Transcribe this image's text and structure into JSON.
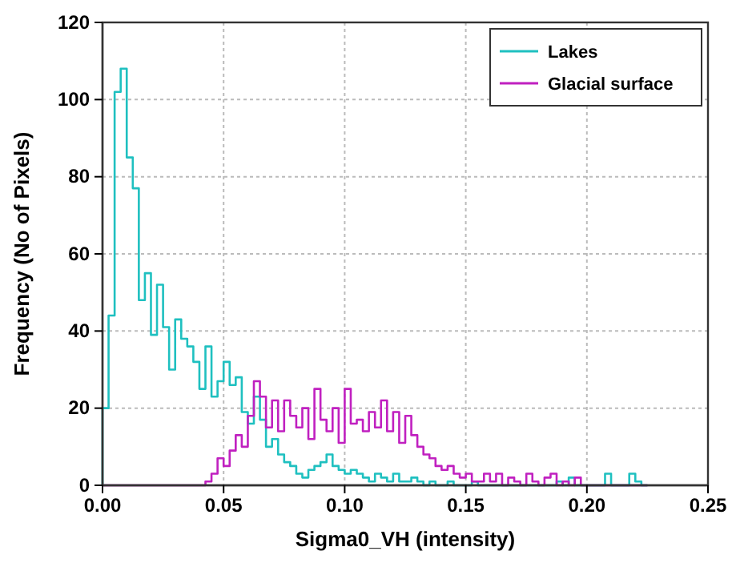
{
  "chart_data": {
    "type": "histogram",
    "xlabel": "Sigma0_VH (intensity)",
    "ylabel": "Frequency (No of Pixels)",
    "bins": [
      0,
      0.0025,
      0.005,
      0.0075,
      0.01,
      0.0125,
      0.015,
      0.0175,
      0.02,
      0.0225,
      0.025,
      0.0275,
      0.03,
      0.0325,
      0.035,
      0.0375,
      0.04,
      0.0425,
      0.045,
      0.0475,
      0.05,
      0.0525,
      0.055,
      0.0575,
      0.06,
      0.0625,
      0.065,
      0.0675,
      0.07,
      0.0725,
      0.075,
      0.0775,
      0.08,
      0.0825,
      0.085,
      0.0875,
      0.09,
      0.0925,
      0.095,
      0.0975,
      0.1,
      0.1025,
      0.105,
      0.1075,
      0.11,
      0.1125,
      0.115,
      0.1175,
      0.12,
      0.1225,
      0.125,
      0.1275,
      0.13,
      0.1325,
      0.135,
      0.1375,
      0.14,
      0.1425,
      0.145,
      0.1475,
      0.15,
      0.1525,
      0.155,
      0.1575,
      0.16,
      0.1625,
      0.165,
      0.1675,
      0.17,
      0.1725,
      0.175,
      0.1775,
      0.18,
      0.1825,
      0.185,
      0.1875,
      0.19,
      0.1925,
      0.195,
      0.1975,
      0.2,
      0.2025,
      0.205,
      0.2075,
      0.21,
      0.2125,
      0.215,
      0.2175,
      0.22,
      0.2225,
      0.225
    ],
    "series": [
      {
        "name": "Lakes",
        "color": "#1fc0c0",
        "values": [
          20,
          44,
          102,
          108,
          85,
          77,
          48,
          55,
          39,
          52,
          41,
          30,
          43,
          38,
          36,
          32,
          25,
          36,
          23,
          27,
          32,
          26,
          28,
          19,
          16,
          23,
          17,
          10,
          12,
          8,
          6,
          5,
          3,
          2,
          4,
          5,
          6,
          8,
          5,
          4,
          3,
          4,
          3,
          2,
          1,
          3,
          2,
          1,
          3,
          1,
          1,
          2,
          1,
          0,
          1,
          0,
          0,
          1,
          0,
          0,
          0,
          1,
          0,
          0,
          0,
          0,
          0,
          0,
          0,
          0,
          0,
          0,
          0,
          0,
          0,
          1,
          0,
          2,
          0,
          0,
          0,
          0,
          0,
          3,
          0,
          0,
          0,
          3,
          1,
          0
        ]
      },
      {
        "name": "Glacial surface",
        "color": "#c020c0",
        "values": [
          0,
          0,
          0,
          0,
          0,
          0,
          0,
          0,
          0,
          0,
          0,
          0,
          0,
          0,
          0,
          0,
          0,
          1,
          3,
          7,
          5,
          9,
          13,
          10,
          18,
          27,
          23,
          15,
          22,
          14,
          22,
          18,
          15,
          20,
          12,
          25,
          17,
          14,
          20,
          11,
          25,
          16,
          17,
          14,
          19,
          15,
          22,
          14,
          19,
          11,
          18,
          13,
          10,
          8,
          7,
          5,
          4,
          5,
          3,
          2,
          3,
          1,
          1,
          3,
          1,
          3,
          0,
          2,
          1,
          0,
          3,
          1,
          0,
          2,
          3,
          0,
          1,
          0,
          2,
          0,
          0,
          0,
          0,
          0,
          0,
          0,
          0,
          0,
          0,
          0
        ]
      }
    ],
    "xlim": [
      0,
      0.25
    ],
    "xticks": [
      {
        "value": 0,
        "label": "0.00"
      },
      {
        "value": 0.05,
        "label": "0.05"
      },
      {
        "value": 0.1,
        "label": "0.10"
      },
      {
        "value": 0.15,
        "label": "0.15"
      },
      {
        "value": 0.2,
        "label": "0.20"
      },
      {
        "value": 0.25,
        "label": "0.25"
      }
    ],
    "ylim": [
      0,
      120
    ],
    "yticks": [
      0,
      20,
      40,
      60,
      80,
      100,
      120
    ],
    "grid": true,
    "legend": "top right"
  }
}
